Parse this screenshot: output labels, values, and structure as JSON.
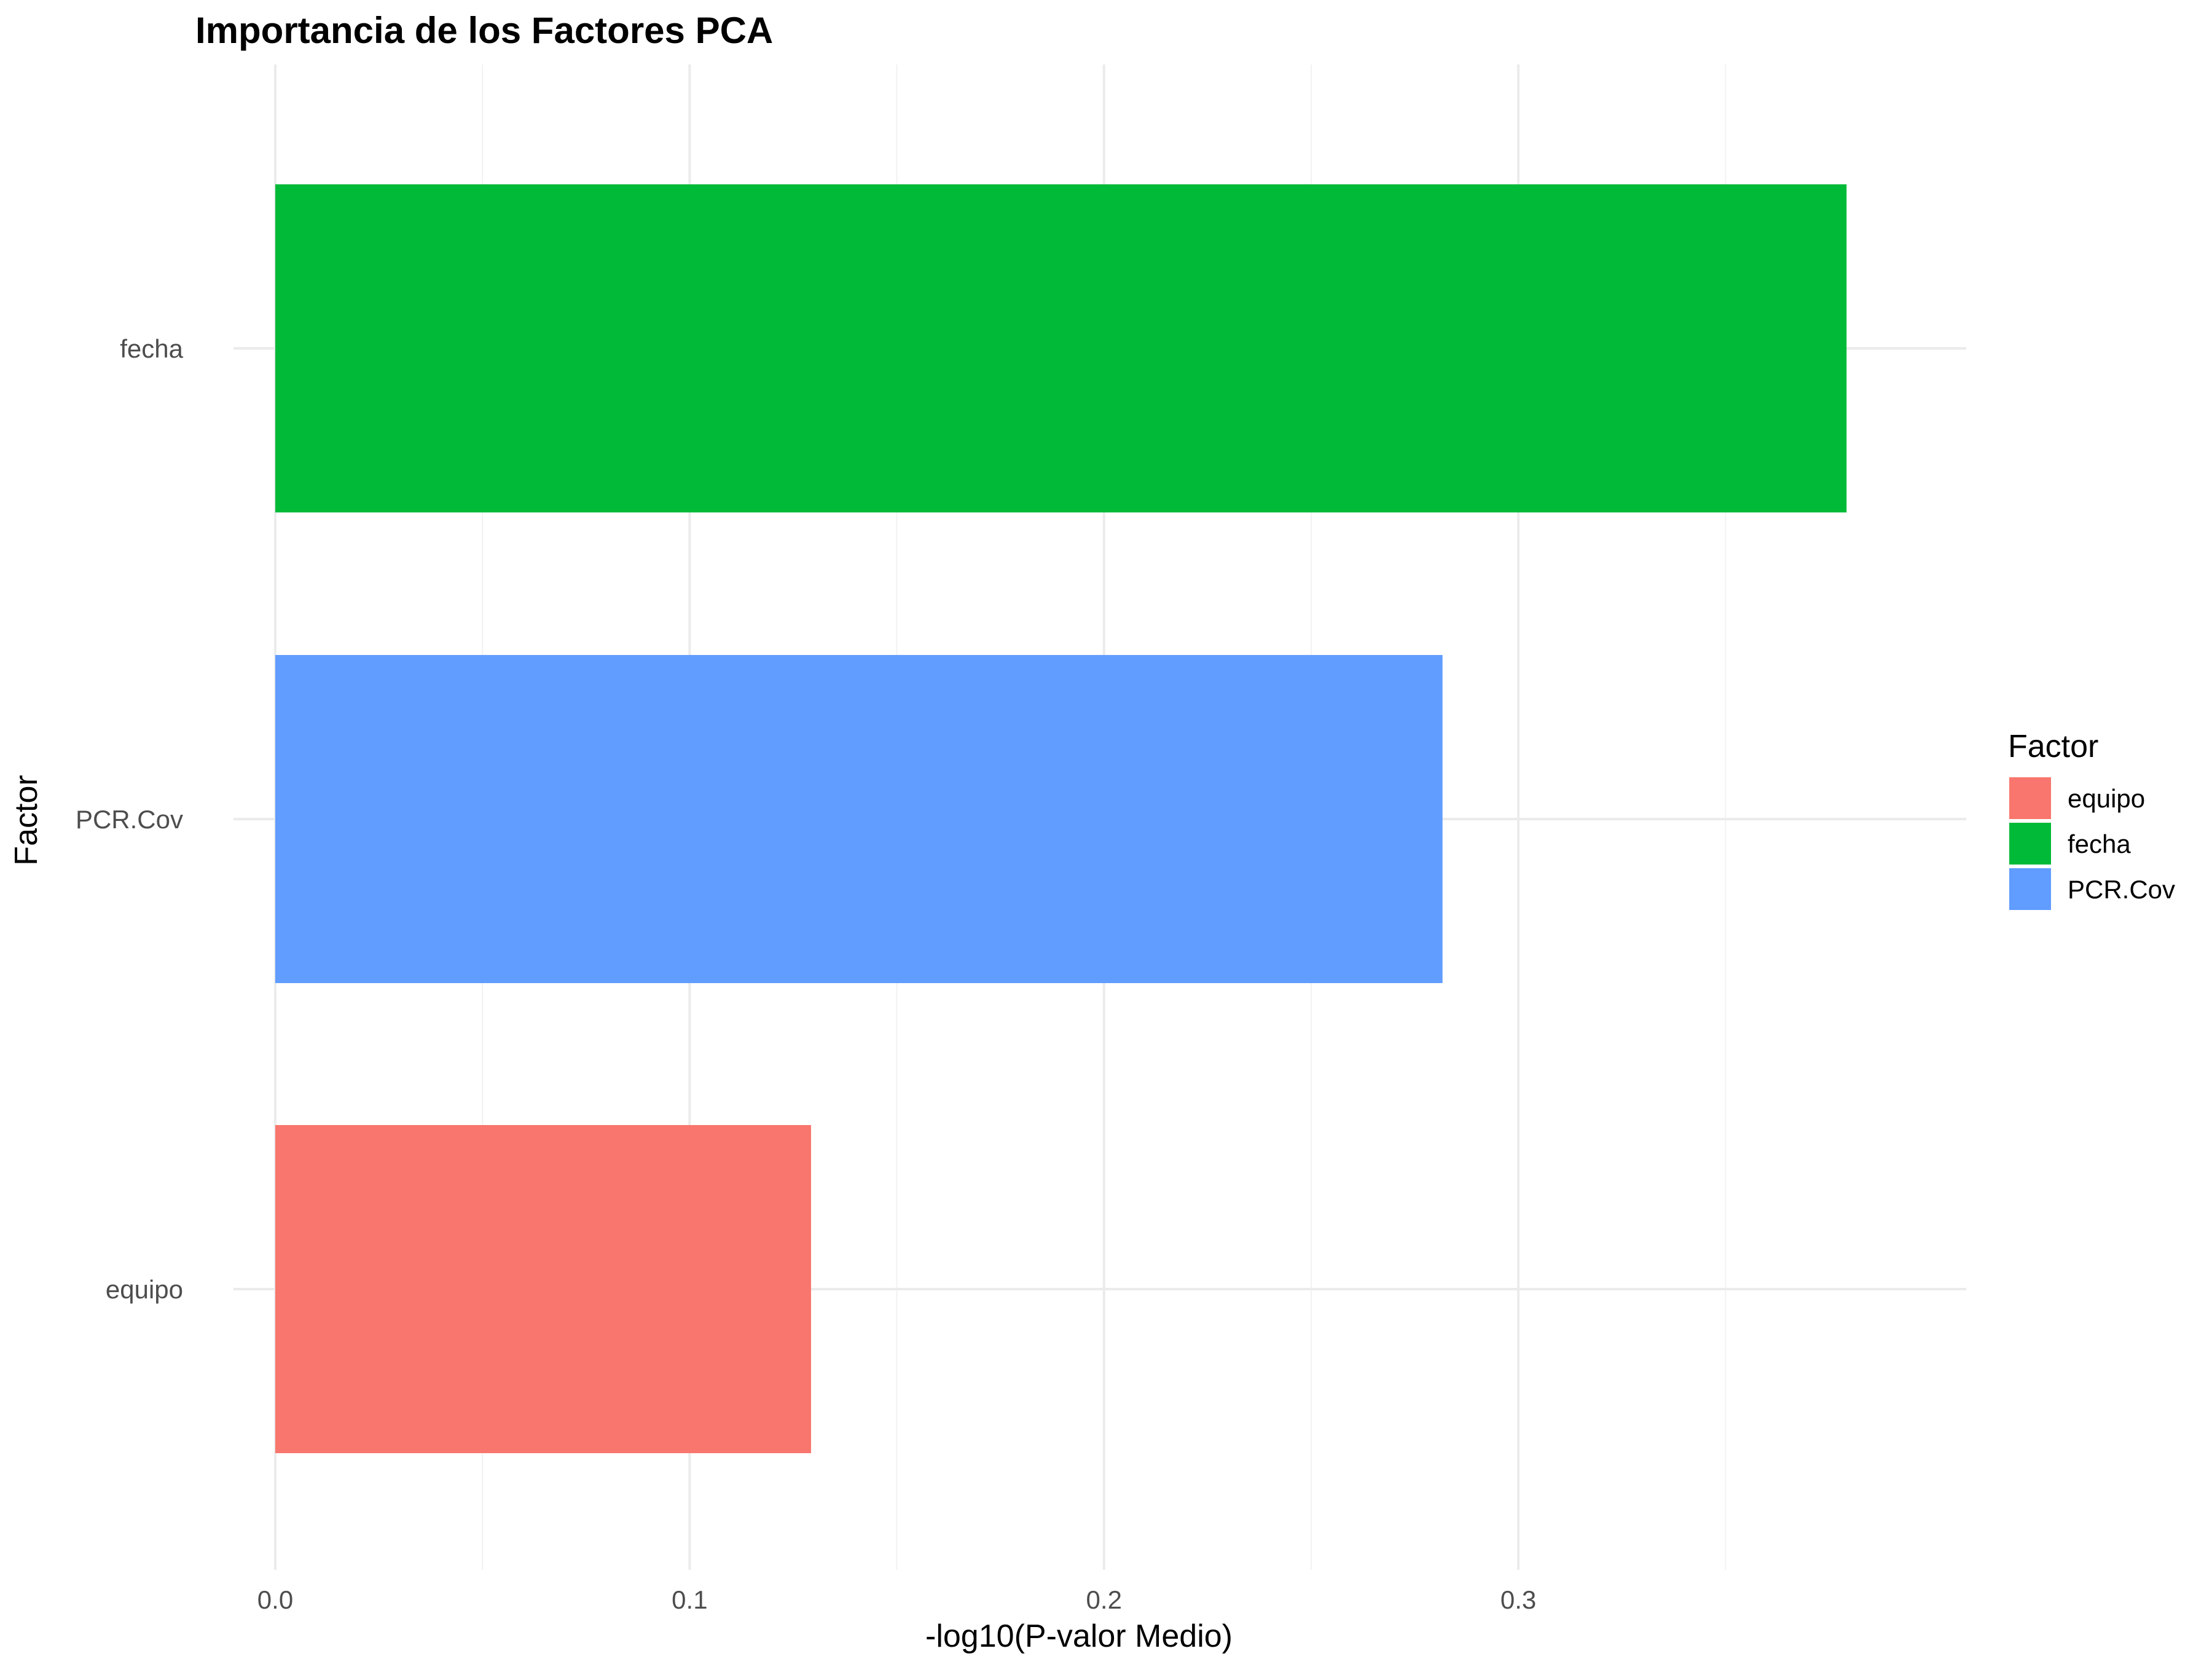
{
  "chart_data": {
    "type": "bar",
    "orientation": "horizontal",
    "title": "Importancia de los Factores PCA",
    "xlabel": "-log10(P-valor Medio)",
    "ylabel": "Factor",
    "categories": [
      "equipo",
      "PCR.Cov",
      "fecha"
    ],
    "values": [
      0.1293,
      0.2817,
      0.3792
    ],
    "colors": [
      "#F8766D",
      "#619CFF",
      "#00BA38"
    ],
    "xlim": [
      0,
      0.398
    ],
    "xticks": [
      0.0,
      0.1,
      0.2,
      0.3
    ],
    "xtick_labels": [
      "0.0",
      "0.1",
      "0.2",
      "0.3"
    ],
    "grid": true,
    "legend": {
      "title": "Factor",
      "position": "right",
      "items": [
        {
          "label": "equipo",
          "color": "#F8766D"
        },
        {
          "label": "fecha",
          "color": "#00BA38"
        },
        {
          "label": "PCR.Cov",
          "color": "#619CFF"
        }
      ]
    }
  }
}
